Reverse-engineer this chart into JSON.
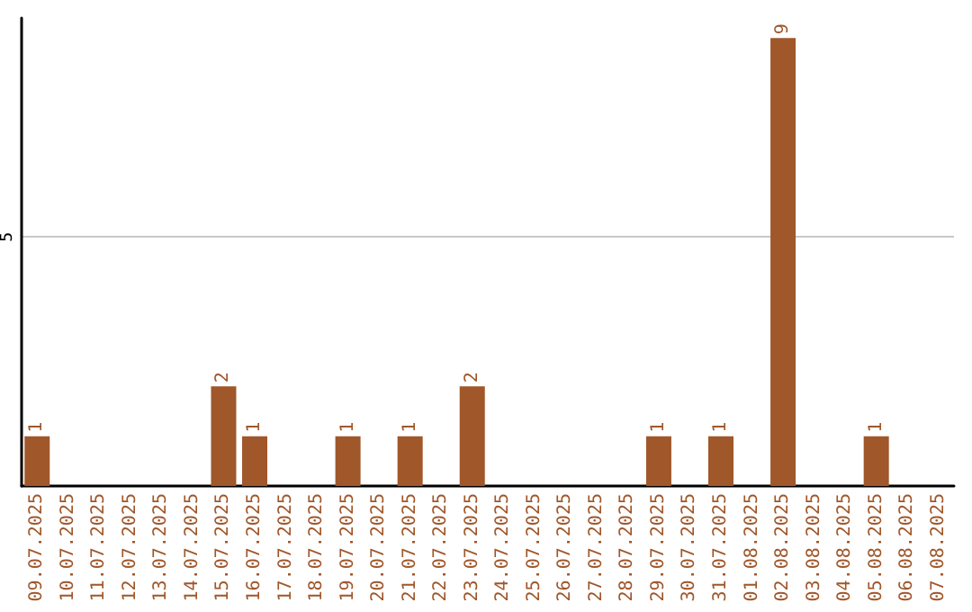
{
  "chart_data": {
    "type": "bar",
    "categories": [
      "09.07.2025",
      "10.07.2025",
      "11.07.2025",
      "12.07.2025",
      "13.07.2025",
      "14.07.2025",
      "15.07.2025",
      "16.07.2025",
      "17.07.2025",
      "18.07.2025",
      "19.07.2025",
      "20.07.2025",
      "21.07.2025",
      "22.07.2025",
      "23.07.2025",
      "24.07.2025",
      "25.07.2025",
      "26.07.2025",
      "27.07.2025",
      "28.07.2025",
      "29.07.2025",
      "30.07.2025",
      "31.07.2025",
      "01.08.2025",
      "02.08.2025",
      "03.08.2025",
      "04.08.2025",
      "05.08.2025",
      "06.08.2025",
      "07.08.2025"
    ],
    "values": [
      1,
      0,
      0,
      0,
      0,
      0,
      2,
      1,
      0,
      0,
      1,
      0,
      1,
      0,
      2,
      0,
      0,
      0,
      0,
      0,
      1,
      0,
      1,
      0,
      9,
      0,
      0,
      1,
      0,
      0
    ],
    "value_labels": [
      "1",
      null,
      null,
      null,
      null,
      null,
      "2",
      "1",
      null,
      null,
      "1",
      null,
      "1",
      null,
      "2",
      null,
      null,
      null,
      null,
      null,
      "1",
      null,
      "1",
      null,
      "9",
      null,
      null,
      "1",
      null,
      null
    ],
    "color": "#a0572a",
    "ylim": [
      0,
      9.4
    ],
    "yticks": [
      5
    ],
    "grid": "y"
  }
}
